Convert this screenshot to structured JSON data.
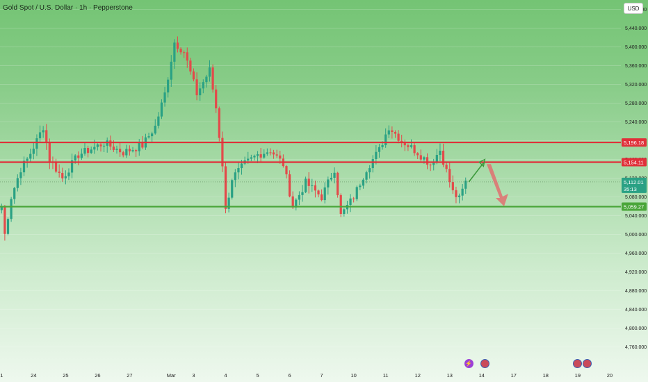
{
  "header": {
    "title": "Gold Spot / U.S. Dollar · 1h · Pepperstone",
    "currency": "USD"
  },
  "colors": {
    "resistance": "#e0303a",
    "support": "#4aa63a",
    "bull": "#2aa184",
    "bear": "#e34a4a",
    "up_arrow": "#3c9a3c",
    "down_arrow": "#e07070"
  },
  "chart_data": {
    "type": "candlestick",
    "symbol": "Gold Spot / U.S. Dollar",
    "timeframe": "1h",
    "source": "Pepperstone",
    "currency": "USD",
    "y_range": [
      4740,
      5500
    ],
    "y_ticks": [
      5480,
      5440,
      5400,
      5360,
      5320,
      5280,
      5240,
      5200,
      5160,
      5120,
      5080,
      5040,
      5000,
      4960,
      4920,
      4880,
      4840,
      4800,
      4760
    ],
    "x_labels": [
      {
        "label": "1",
        "index": 0
      },
      {
        "label": "24",
        "index": 10
      },
      {
        "label": "25",
        "index": 20
      },
      {
        "label": "26",
        "index": 30
      },
      {
        "label": "27",
        "index": 40
      },
      {
        "label": "Mar",
        "index": 53
      },
      {
        "label": "3",
        "index": 60
      },
      {
        "label": "4",
        "index": 70
      },
      {
        "label": "5",
        "index": 80
      },
      {
        "label": "6",
        "index": 90
      },
      {
        "label": "7",
        "index": 100
      },
      {
        "label": "10",
        "index": 110
      },
      {
        "label": "11",
        "index": 120
      },
      {
        "label": "12",
        "index": 130
      },
      {
        "label": "13",
        "index": 140
      },
      {
        "label": "14",
        "index": 150
      },
      {
        "label": "17",
        "index": 160
      },
      {
        "label": "18",
        "index": 170
      },
      {
        "label": "19",
        "index": 180
      },
      {
        "label": "20",
        "index": 190
      }
    ],
    "levels": [
      {
        "name": "resistance",
        "value": 5196.18,
        "label": "5,196.18",
        "color": "#e0303a"
      },
      {
        "name": "resistance",
        "value": 5154.11,
        "label": "5,154.11",
        "color": "#e0303a"
      },
      {
        "name": "support",
        "value": 5059.27,
        "label": "5,059.27",
        "color": "#4aa63a"
      }
    ],
    "last_price": {
      "value": 5112.01,
      "label": "5,112.01",
      "countdown": "35:13"
    },
    "key_points": [
      {
        "index": 0,
        "price": 5060
      },
      {
        "index": 1,
        "price": 5000
      },
      {
        "index": 3,
        "price": 5080
      },
      {
        "index": 6,
        "price": 5140
      },
      {
        "index": 8,
        "price": 5160
      },
      {
        "index": 11,
        "price": 5200
      },
      {
        "index": 13,
        "price": 5230
      },
      {
        "index": 15,
        "price": 5160
      },
      {
        "index": 19,
        "price": 5120
      },
      {
        "index": 24,
        "price": 5170
      },
      {
        "index": 32,
        "price": 5195
      },
      {
        "index": 38,
        "price": 5175
      },
      {
        "index": 44,
        "price": 5190
      },
      {
        "index": 48,
        "price": 5230
      },
      {
        "index": 51,
        "price": 5300
      },
      {
        "index": 54,
        "price": 5410
      },
      {
        "index": 57,
        "price": 5390
      },
      {
        "index": 61,
        "price": 5300
      },
      {
        "index": 65,
        "price": 5350
      },
      {
        "index": 67,
        "price": 5270
      },
      {
        "index": 69,
        "price": 5150
      },
      {
        "index": 70,
        "price": 5050
      },
      {
        "index": 72,
        "price": 5120
      },
      {
        "index": 76,
        "price": 5150
      },
      {
        "index": 80,
        "price": 5170
      },
      {
        "index": 84,
        "price": 5180
      },
      {
        "index": 88,
        "price": 5150
      },
      {
        "index": 91,
        "price": 5060
      },
      {
        "index": 95,
        "price": 5110
      },
      {
        "index": 100,
        "price": 5080
      },
      {
        "index": 104,
        "price": 5140
      },
      {
        "index": 106,
        "price": 5040
      },
      {
        "index": 110,
        "price": 5080
      },
      {
        "index": 114,
        "price": 5140
      },
      {
        "index": 118,
        "price": 5180
      },
      {
        "index": 121,
        "price": 5230
      },
      {
        "index": 125,
        "price": 5200
      },
      {
        "index": 130,
        "price": 5175
      },
      {
        "index": 134,
        "price": 5150
      },
      {
        "index": 137,
        "price": 5180
      },
      {
        "index": 141,
        "price": 5090
      },
      {
        "index": 143,
        "price": 5075
      },
      {
        "index": 145,
        "price": 5112
      }
    ],
    "projection": {
      "up": {
        "from": {
          "index": 146,
          "price": 5112
        },
        "to": {
          "index": 151,
          "price": 5160
        }
      },
      "down": {
        "from": {
          "index": 152,
          "price": 5150
        },
        "to": {
          "index": 157,
          "price": 5060
        }
      }
    },
    "candle_count": 146,
    "x_slots": 194
  },
  "events": [
    {
      "kind": "bolt",
      "index": 146
    },
    {
      "kind": "flag",
      "index": 151
    },
    {
      "kind": "flag",
      "index": 180
    },
    {
      "kind": "flag",
      "index": 183
    }
  ]
}
